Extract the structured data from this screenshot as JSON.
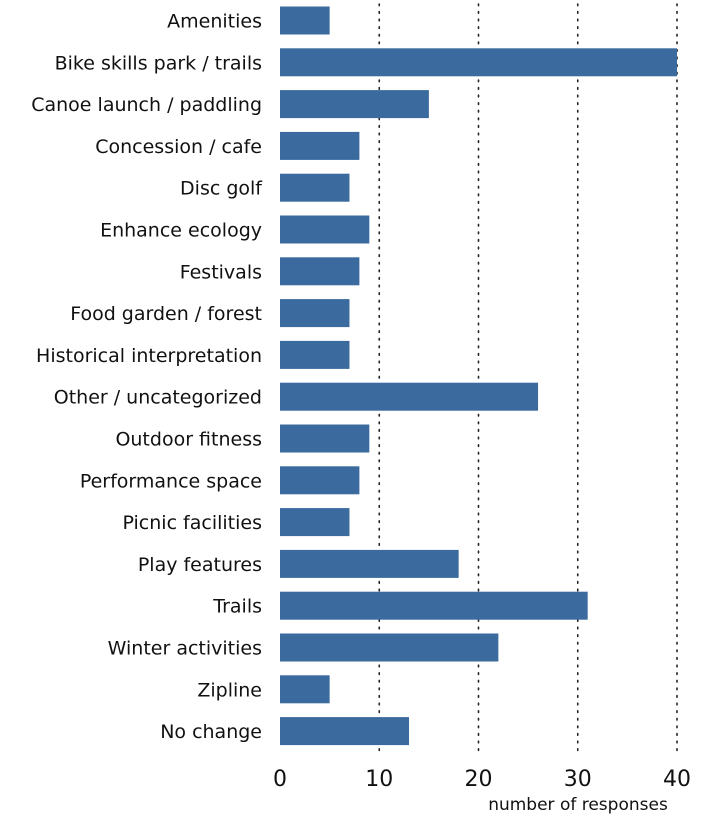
{
  "chart_data": {
    "type": "bar",
    "orientation": "horizontal",
    "categories": [
      "Amenities",
      "Bike skills park / trails",
      "Canoe launch / paddling",
      "Concession / cafe",
      "Disc golf",
      "Enhance ecology",
      "Festivals",
      "Food garden / forest",
      "Historical interpretation",
      "Other / uncategorized",
      "Outdoor fitness",
      "Performance space",
      "Picnic facilities",
      "Play features",
      "Trails",
      "Winter activities",
      "Zipline",
      "No change"
    ],
    "values": [
      5,
      40,
      15,
      8,
      7,
      9,
      8,
      7,
      7,
      26,
      9,
      8,
      7,
      18,
      31,
      22,
      5,
      13
    ],
    "xlabel": "number of responses",
    "xlim": [
      0,
      40
    ],
    "xticks": [
      0,
      10,
      20,
      30,
      40
    ],
    "grid": "vertical dotted",
    "bar_color": "#3b6a9e"
  }
}
